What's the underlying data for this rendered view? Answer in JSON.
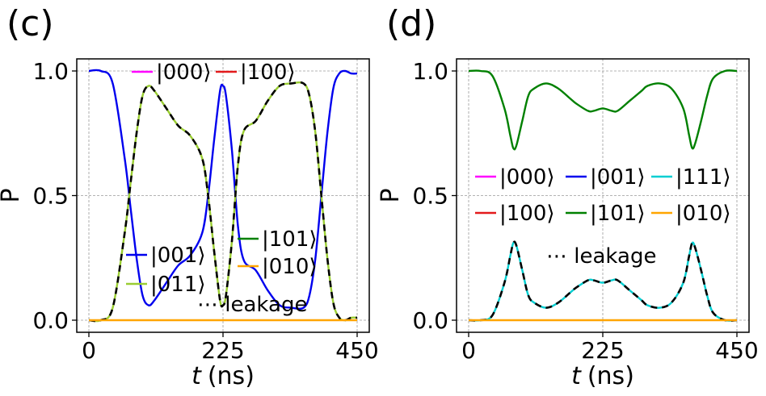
{
  "chart_data": [
    {
      "type": "line",
      "panel_label": "(c)",
      "xlabel_italic": "t",
      "xlabel_unit": "(ns)",
      "ylabel": "P",
      "xlim": [
        0,
        450
      ],
      "ylim": [
        0,
        1
      ],
      "xticks": [
        "0",
        "225",
        "450"
      ],
      "yticks": [
        "0.0",
        "0.5",
        "1.0"
      ],
      "grid": true,
      "legend_entries": [
        "|000⟩",
        "|100⟩",
        "|001⟩",
        "|011⟩",
        "|101⟩",
        "|010⟩",
        "⋯ leakage"
      ],
      "series": [
        {
          "name": "|001⟩",
          "color": "#0000ee",
          "style": "solid",
          "x": [
            0,
            20,
            40,
            60,
            70,
            80,
            90,
            100,
            110,
            130,
            150,
            170,
            190,
            200,
            210,
            220,
            225,
            230,
            240,
            250,
            260,
            280,
            300,
            320,
            340,
            360,
            370,
            380,
            390,
            400,
            410,
            420,
            430,
            440,
            450
          ],
          "y": [
            1.0,
            1.0,
            0.95,
            0.65,
            0.45,
            0.25,
            0.1,
            0.06,
            0.08,
            0.15,
            0.22,
            0.26,
            0.35,
            0.5,
            0.72,
            0.92,
            0.94,
            0.9,
            0.68,
            0.38,
            0.24,
            0.2,
            0.12,
            0.06,
            0.05,
            0.05,
            0.1,
            0.25,
            0.5,
            0.75,
            0.93,
            0.99,
            1.0,
            0.99,
            0.99
          ]
        },
        {
          "name": "|011⟩",
          "color": "#9acd32",
          "style": "solid",
          "x": [
            0,
            20,
            40,
            60,
            70,
            80,
            90,
            100,
            110,
            130,
            150,
            170,
            190,
            200,
            210,
            220,
            225,
            230,
            240,
            250,
            260,
            280,
            300,
            320,
            340,
            360,
            370,
            380,
            390,
            400,
            410,
            420,
            430,
            440,
            450
          ],
          "y": [
            0.0,
            0.0,
            0.05,
            0.35,
            0.55,
            0.75,
            0.9,
            0.94,
            0.92,
            0.85,
            0.78,
            0.74,
            0.65,
            0.5,
            0.28,
            0.08,
            0.06,
            0.1,
            0.32,
            0.62,
            0.76,
            0.8,
            0.88,
            0.94,
            0.95,
            0.95,
            0.9,
            0.75,
            0.5,
            0.25,
            0.07,
            0.01,
            0.0,
            0.01,
            0.01
          ]
        },
        {
          "name": "leakage",
          "color": "#000000",
          "style": "dashed",
          "x": [
            0,
            20,
            40,
            60,
            70,
            80,
            90,
            100,
            110,
            130,
            150,
            170,
            190,
            200,
            210,
            220,
            225,
            230,
            240,
            250,
            260,
            280,
            300,
            320,
            340,
            360,
            370,
            380,
            390,
            400,
            410,
            420,
            430,
            440,
            450
          ],
          "y": [
            0.0,
            0.0,
            0.05,
            0.35,
            0.55,
            0.75,
            0.9,
            0.94,
            0.92,
            0.85,
            0.78,
            0.74,
            0.65,
            0.5,
            0.28,
            0.08,
            0.06,
            0.1,
            0.32,
            0.62,
            0.76,
            0.8,
            0.88,
            0.94,
            0.95,
            0.95,
            0.9,
            0.75,
            0.5,
            0.25,
            0.07,
            0.01,
            0.0,
            0.01,
            0.01
          ]
        },
        {
          "name": "|010⟩",
          "color": "#ffa500",
          "style": "solid",
          "x": [
            0,
            450
          ],
          "y": [
            0,
            0
          ]
        }
      ]
    },
    {
      "type": "line",
      "panel_label": "(d)",
      "xlabel_italic": "t",
      "xlabel_unit": "(ns)",
      "ylabel": "P",
      "xlim": [
        0,
        450
      ],
      "ylim": [
        0,
        1
      ],
      "xticks": [
        "0",
        "225",
        "450"
      ],
      "yticks": [
        "0.0",
        "0.5",
        "1.0"
      ],
      "grid": true,
      "legend_entries": [
        "|000⟩",
        "|001⟩",
        "|111⟩",
        "|100⟩",
        "|101⟩",
        "|010⟩",
        "⋯ leakage"
      ],
      "series": [
        {
          "name": "|101⟩",
          "color": "#008000",
          "style": "solid",
          "x": [
            0,
            20,
            40,
            60,
            70,
            75,
            80,
            90,
            100,
            110,
            130,
            150,
            170,
            180,
            200,
            210,
            225,
            240,
            250,
            270,
            290,
            300,
            320,
            340,
            360,
            370,
            375,
            380,
            390,
            400,
            410,
            430,
            450
          ],
          "y": [
            1.0,
            1.0,
            0.98,
            0.85,
            0.74,
            0.69,
            0.7,
            0.8,
            0.9,
            0.93,
            0.95,
            0.93,
            0.89,
            0.87,
            0.84,
            0.84,
            0.85,
            0.84,
            0.84,
            0.88,
            0.92,
            0.94,
            0.95,
            0.93,
            0.85,
            0.74,
            0.69,
            0.71,
            0.8,
            0.9,
            0.97,
            1.0,
            1.0
          ]
        },
        {
          "name": "|111⟩",
          "color": "#00ced1",
          "style": "solid",
          "x": [
            0,
            20,
            40,
            60,
            70,
            75,
            80,
            90,
            100,
            110,
            130,
            150,
            170,
            180,
            200,
            210,
            225,
            240,
            250,
            270,
            290,
            300,
            320,
            340,
            360,
            370,
            375,
            380,
            390,
            400,
            410,
            430,
            450
          ],
          "y": [
            0.0,
            0.0,
            0.02,
            0.15,
            0.26,
            0.31,
            0.3,
            0.2,
            0.1,
            0.07,
            0.05,
            0.07,
            0.11,
            0.13,
            0.16,
            0.16,
            0.15,
            0.16,
            0.16,
            0.12,
            0.08,
            0.06,
            0.05,
            0.07,
            0.15,
            0.26,
            0.31,
            0.29,
            0.2,
            0.1,
            0.03,
            0.0,
            0.0
          ]
        },
        {
          "name": "leakage",
          "color": "#000000",
          "style": "dashed",
          "x": [
            0,
            20,
            40,
            60,
            70,
            75,
            80,
            90,
            100,
            110,
            130,
            150,
            170,
            180,
            200,
            210,
            225,
            240,
            250,
            270,
            290,
            300,
            320,
            340,
            360,
            370,
            375,
            380,
            390,
            400,
            410,
            430,
            450
          ],
          "y": [
            0.0,
            0.0,
            0.02,
            0.15,
            0.26,
            0.31,
            0.3,
            0.2,
            0.1,
            0.07,
            0.05,
            0.07,
            0.11,
            0.13,
            0.16,
            0.16,
            0.15,
            0.16,
            0.16,
            0.12,
            0.08,
            0.06,
            0.05,
            0.07,
            0.15,
            0.26,
            0.31,
            0.29,
            0.2,
            0.1,
            0.03,
            0.0,
            0.0
          ]
        },
        {
          "name": "|010⟩",
          "color": "#ffa500",
          "style": "solid",
          "x": [
            0,
            450
          ],
          "y": [
            0,
            0
          ]
        }
      ]
    }
  ],
  "legend_colors": {
    "magenta": "#ff00ff",
    "red": "#e31a1c",
    "blue": "#0000ee",
    "yellowgreen": "#9acd32",
    "green": "#008000",
    "orange": "#ffa500",
    "cyan": "#00ced1"
  }
}
